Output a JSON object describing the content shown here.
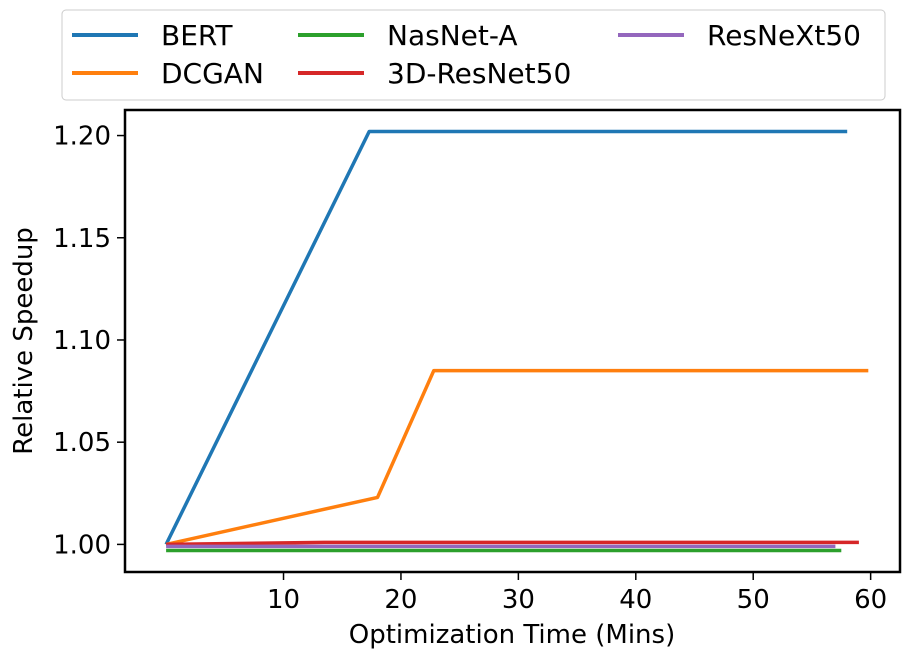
{
  "chart_data": {
    "type": "line",
    "title": "",
    "xlabel": "Optimization Time (Mins)",
    "ylabel": "Relative Speedup",
    "xlim": [
      -3.5,
      62.5
    ],
    "ylim": [
      0.9865,
      1.2125
    ],
    "xticks": [
      10,
      20,
      30,
      40,
      50,
      60
    ],
    "yticks": [
      1.0,
      1.05,
      1.1,
      1.15,
      1.2
    ],
    "ytick_labels": [
      "1.00",
      "1.05",
      "1.10",
      "1.15",
      "1.20"
    ],
    "xtick_labels": [
      "10",
      "20",
      "30",
      "40",
      "50",
      "60"
    ],
    "grid": false,
    "legend_position": "top (above plot), 3 columns",
    "series": [
      {
        "name": "BERT",
        "color": "#1f77b4",
        "x": [
          0,
          17.3,
          58
        ],
        "y": [
          1.0,
          1.202,
          1.202
        ]
      },
      {
        "name": "DCGAN",
        "color": "#ff7f0e",
        "x": [
          0,
          18.0,
          22.8,
          59.8
        ],
        "y": [
          1.0,
          1.023,
          1.085,
          1.085
        ]
      },
      {
        "name": "NasNet-A",
        "color": "#2ca02c",
        "x": [
          0,
          57.5
        ],
        "y": [
          0.997,
          0.997
        ]
      },
      {
        "name": "3D-ResNet50",
        "color": "#d62728",
        "x": [
          0,
          13.5,
          59
        ],
        "y": [
          1.0,
          1.001,
          1.001
        ]
      },
      {
        "name": "ResNeXt50",
        "color": "#9467bd",
        "x": [
          0,
          57
        ],
        "y": [
          0.999,
          0.999
        ]
      }
    ]
  }
}
